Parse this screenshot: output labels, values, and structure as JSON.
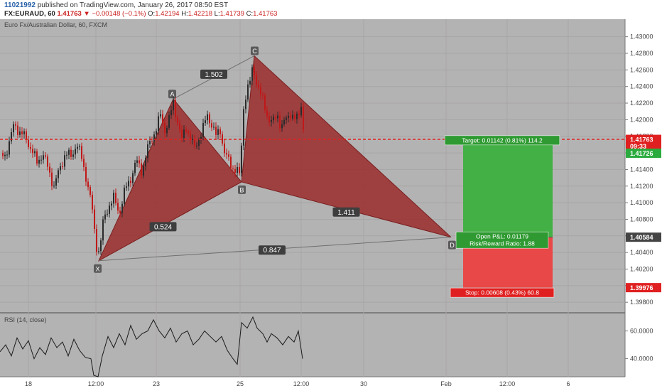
{
  "header": {
    "user": "11021992",
    "published": "published on TradingView.com, January 26, 2017 08:50 EST",
    "symbol": "FX:EURAUD, 60",
    "last": "1.41763",
    "change_arrow": "▼",
    "change": "−0.00148 (−0.1%)",
    "o_label": "O:",
    "o_value": "1.42194",
    "h_label": "H:",
    "h_value": "1.42218",
    "l_label": "L:",
    "l_value": "1.41739",
    "c_label": "C:",
    "c_value": "1.41763"
  },
  "chart_title": "Euro Fx/Australian Dollar, 60, FXCM",
  "rsi_label": "RSI (14, close)",
  "price_axis": {
    "ticks": [
      "1.43000",
      "1.42800",
      "1.42600",
      "1.42400",
      "1.42200",
      "1.42000",
      "1.41800",
      "1.41600",
      "1.41400",
      "1.41200",
      "1.41000",
      "1.40800",
      "1.40600",
      "1.40400",
      "1.40200",
      "1.40000",
      "1.39800"
    ],
    "badges": [
      {
        "text": "1.41763",
        "price": 1.41763,
        "color": "#e02020"
      },
      {
        "text": "09:33",
        "price": 1.4168,
        "color": "#e02020"
      },
      {
        "text": "1.41726",
        "price": 1.41596,
        "color": "#2bab3e"
      },
      {
        "text": "1.40584",
        "price": 1.40584,
        "color": "#444444"
      },
      {
        "text": "1.39976",
        "price": 1.39976,
        "color": "#e02020"
      }
    ]
  },
  "rsi_axis": {
    "ticks": [
      "60.0000",
      "40.0000"
    ]
  },
  "time_axis": {
    "labels": [
      "18",
      "12:00",
      "23",
      "25",
      "12:00",
      "30",
      "Feb",
      "12:00",
      "6"
    ]
  },
  "pattern": {
    "points": [
      {
        "label": "X",
        "price": 1.403
      },
      {
        "label": "A",
        "price": 1.4225
      },
      {
        "label": "B",
        "price": 1.4125
      },
      {
        "label": "C",
        "price": 1.4277
      },
      {
        "label": "D",
        "price": 1.40584
      }
    ],
    "ratios": [
      "1.502",
      "0.524",
      "1.411",
      "0.847"
    ]
  },
  "position": {
    "target_label": "Target: 0.01142 (0.81%) 114.2",
    "target_price": 1.41726,
    "entry_price": 1.40584,
    "stop_price": 1.39976,
    "pnl_label": "Open P&L: 0.01179",
    "rr_label": "Risk/Reward Ratio: 1.88",
    "stop_label": "Stop: 0.00608 (0.43%) 60.8"
  },
  "colors": {
    "background": "#b4b3b3",
    "pattern_fill": "#9a2b2b",
    "profit": "#43b046",
    "loss": "#e84848",
    "current_price_line": "#e02020"
  },
  "chart_data": {
    "type": "candlestick",
    "title": "Euro Fx/Australian Dollar, 60, FXCM",
    "symbol": "FX:EURAUD",
    "interval": "60",
    "ylim": [
      1.3975,
      1.431
    ],
    "current_price": 1.41763,
    "price_series": [
      [
        0,
        1.416
      ],
      [
        6,
        1.4155
      ],
      [
        14,
        1.4175
      ],
      [
        20,
        1.4195
      ],
      [
        28,
        1.4185
      ],
      [
        36,
        1.4178
      ],
      [
        44,
        1.4165
      ],
      [
        52,
        1.4148
      ],
      [
        60,
        1.416
      ],
      [
        68,
        1.414
      ],
      [
        76,
        1.412
      ],
      [
        84,
        1.414
      ],
      [
        92,
        1.416
      ],
      [
        100,
        1.4155
      ],
      [
        108,
        1.4172
      ],
      [
        116,
        1.415
      ],
      [
        124,
        1.412
      ],
      [
        130,
        1.409
      ],
      [
        135,
        1.405
      ],
      [
        140,
        1.404
      ],
      [
        145,
        1.4075
      ],
      [
        152,
        1.4095
      ],
      [
        160,
        1.4105
      ],
      [
        168,
        1.4088
      ],
      [
        176,
        1.4115
      ],
      [
        184,
        1.413
      ],
      [
        192,
        1.415
      ],
      [
        200,
        1.4138
      ],
      [
        208,
        1.4165
      ],
      [
        214,
        1.4178
      ],
      [
        220,
        1.419
      ],
      [
        226,
        1.4205
      ],
      [
        232,
        1.4188
      ],
      [
        238,
        1.42
      ],
      [
        244,
        1.422
      ],
      [
        250,
        1.4198
      ],
      [
        256,
        1.4175
      ],
      [
        262,
        1.4192
      ],
      [
        268,
        1.4178
      ],
      [
        274,
        1.4165
      ],
      [
        280,
        1.4178
      ],
      [
        286,
        1.419
      ],
      [
        292,
        1.4205
      ],
      [
        298,
        1.4195
      ],
      [
        304,
        1.418
      ],
      [
        310,
        1.4188
      ],
      [
        316,
        1.416
      ],
      [
        322,
        1.415
      ],
      [
        328,
        1.4142
      ],
      [
        334,
        1.4138
      ],
      [
        338,
        1.413
      ],
      [
        342,
        1.421
      ],
      [
        346,
        1.423
      ],
      [
        352,
        1.4245
      ],
      [
        356,
        1.4265
      ],
      [
        360,
        1.425
      ],
      [
        366,
        1.423
      ],
      [
        372,
        1.422
      ],
      [
        378,
        1.42
      ],
      [
        384,
        1.4195
      ],
      [
        390,
        1.421
      ],
      [
        396,
        1.4188
      ],
      [
        402,
        1.42
      ],
      [
        408,
        1.421
      ],
      [
        414,
        1.4198
      ],
      [
        420,
        1.4205
      ],
      [
        424,
        1.422
      ],
      [
        428,
        1.41763
      ]
    ],
    "rsi_series": [
      [
        0,
        45
      ],
      [
        8,
        50
      ],
      [
        16,
        42
      ],
      [
        24,
        55
      ],
      [
        32,
        47
      ],
      [
        40,
        53
      ],
      [
        48,
        40
      ],
      [
        56,
        48
      ],
      [
        64,
        43
      ],
      [
        72,
        55
      ],
      [
        80,
        48
      ],
      [
        88,
        52
      ],
      [
        96,
        42
      ],
      [
        104,
        54
      ],
      [
        112,
        46
      ],
      [
        120,
        41
      ],
      [
        128,
        40
      ],
      [
        132,
        28
      ],
      [
        138,
        27
      ],
      [
        144,
        42
      ],
      [
        152,
        56
      ],
      [
        160,
        48
      ],
      [
        168,
        58
      ],
      [
        176,
        50
      ],
      [
        184,
        64
      ],
      [
        192,
        54
      ],
      [
        200,
        58
      ],
      [
        208,
        60
      ],
      [
        216,
        68
      ],
      [
        224,
        60
      ],
      [
        232,
        55
      ],
      [
        240,
        62
      ],
      [
        248,
        52
      ],
      [
        256,
        58
      ],
      [
        264,
        60
      ],
      [
        272,
        50
      ],
      [
        280,
        54
      ],
      [
        288,
        60
      ],
      [
        296,
        56
      ],
      [
        304,
        52
      ],
      [
        312,
        56
      ],
      [
        320,
        46
      ],
      [
        328,
        40
      ],
      [
        334,
        36
      ],
      [
        340,
        66
      ],
      [
        348,
        62
      ],
      [
        356,
        70
      ],
      [
        362,
        62
      ],
      [
        370,
        58
      ],
      [
        376,
        52
      ],
      [
        382,
        58
      ],
      [
        390,
        55
      ],
      [
        398,
        50
      ],
      [
        406,
        56
      ],
      [
        414,
        52
      ],
      [
        420,
        60
      ],
      [
        426,
        40
      ]
    ],
    "rsi_ylim": [
      28,
      70
    ]
  }
}
